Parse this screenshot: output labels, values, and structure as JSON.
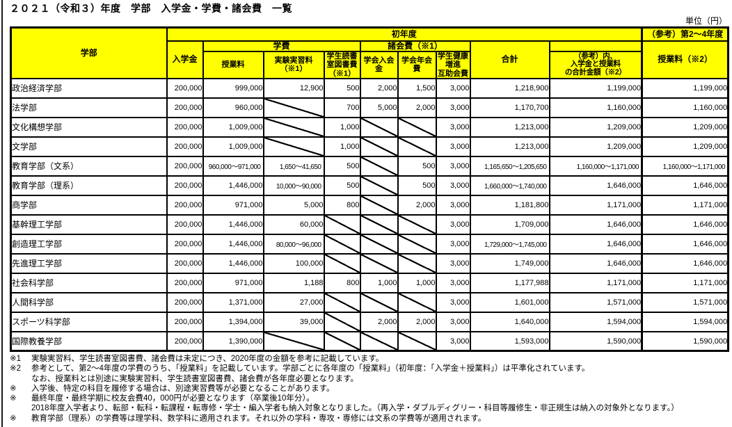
{
  "page": {
    "title": "２０２１（令和３）年度　学部　入学金・学費・諸会費　一覧",
    "unit_label": "単位（円）"
  },
  "table": {
    "group_headers": {
      "faculty": "学部",
      "first_year": "初年度",
      "ref_years": "（参考）第2～4年度",
      "admission": "入学金",
      "gakuhi": "学費",
      "shokaihi": "諸会費（※1）",
      "total": "合計",
      "ref_total": "（参考）内、入学金と授業料\nの合計金額（※2）",
      "tuition2_4": "授業料（※2）"
    },
    "sub_headers": {
      "tuition": "授業料",
      "lab": "実験実習料\n（※1）",
      "library": "学生読書\n室図書費\n（※1）",
      "society_entry": "学会入会\n金",
      "society_annual": "学会年会\n費",
      "health": "学生健康\n増進\n互助会費"
    },
    "rows": [
      {
        "faculty": "政治経済学部",
        "values": [
          "200,000",
          "999,000",
          "12,900",
          "500",
          "2,000",
          "1,500",
          "3,000",
          "1,218,900",
          "1,199,000",
          "1,199,000"
        ]
      },
      {
        "faculty": "法学部",
        "values": [
          "200,000",
          "960,000",
          null,
          "700",
          "5,000",
          "2,000",
          "3,000",
          "1,170,700",
          "1,160,000",
          "1,160,000"
        ]
      },
      {
        "faculty": "文化構想学部",
        "values": [
          "200,000",
          "1,009,000",
          null,
          "1,000",
          null,
          null,
          "3,000",
          "1,213,000",
          "1,209,000",
          "1,209,000"
        ]
      },
      {
        "faculty": "文学部",
        "values": [
          "200,000",
          "1,009,000",
          null,
          "1,000",
          null,
          null,
          "3,000",
          "1,213,000",
          "1,209,000",
          "1,209,000"
        ]
      },
      {
        "faculty": "教育学部（文系）",
        "values": [
          "200,000",
          "960,000～971,000",
          "1,650～41,650",
          "500",
          null,
          "500",
          "3,000",
          "1,165,650～1,205,650",
          "1,160,000～1,171,000",
          "1,160,000～1,171,000"
        ]
      },
      {
        "faculty": "教育学部（理系）",
        "values": [
          "200,000",
          "1,446,000",
          "10,000～90,000",
          "500",
          null,
          "500",
          "3,000",
          "1,660,000～1,740,000",
          "1,646,000",
          "1,646,000"
        ]
      },
      {
        "faculty": "商学部",
        "values": [
          "200,000",
          "971,000",
          "5,000",
          "800",
          null,
          "2,000",
          "3,000",
          "1,181,800",
          "1,171,000",
          "1,171,000"
        ]
      },
      {
        "faculty": "基幹理工学部",
        "values": [
          "200,000",
          "1,446,000",
          "60,000",
          null,
          null,
          null,
          "3,000",
          "1,709,000",
          "1,646,000",
          "1,646,000"
        ]
      },
      {
        "faculty": "創造理工学部",
        "values": [
          "200,000",
          "1,446,000",
          "80,000～96,000",
          null,
          null,
          null,
          "3,000",
          "1,729,000～1,745,000",
          "1,646,000",
          "1,646,000"
        ]
      },
      {
        "faculty": "先進理工学部",
        "values": [
          "200,000",
          "1,446,000",
          "100,000",
          null,
          null,
          null,
          "3,000",
          "1,749,000",
          "1,646,000",
          "1,646,000"
        ]
      },
      {
        "faculty": "社会科学部",
        "values": [
          "200,000",
          "971,000",
          "1,188",
          "800",
          "1,000",
          "1,000",
          "3,000",
          "1,177,988",
          "1,171,000",
          "1,171,000"
        ]
      },
      {
        "faculty": "人間科学部",
        "values": [
          "200,000",
          "1,371,000",
          "27,000",
          null,
          null,
          null,
          "3,000",
          "1,601,000",
          "1,571,000",
          "1,571,000"
        ]
      },
      {
        "faculty": "スポーツ科学部",
        "values": [
          "200,000",
          "1,394,000",
          "39,000",
          null,
          "2,000",
          "2,000",
          "3,000",
          "1,640,000",
          "1,594,000",
          "1,594,000"
        ]
      },
      {
        "faculty": "国際教養学部",
        "values": [
          "200,000",
          "1,390,000",
          null,
          null,
          null,
          null,
          "3,000",
          "1,593,000",
          "1,590,000",
          "1,590,000"
        ]
      }
    ]
  },
  "footnotes": [
    {
      "marker": "※1",
      "text": "実験実習料、学生読書室図書費、諸会費は未定につき、2020年度の金額を参考に記載しています。"
    },
    {
      "marker": "※2",
      "text": "参考として、第2～4年度の学費のうち、「授業料」を記載しています。学部ごとに各年度の「授業料」（初年度：「入学金＋授業料」）は平準化されています。"
    },
    {
      "marker": "",
      "text": "なお、授業料とは別途に実験実習料、学生読書室図書費、諸会費が各年度必要となります。"
    },
    {
      "marker": "※",
      "text": "入学後、特定の科目を履修する場合は、別途実習費等が必要となることがあります。"
    },
    {
      "marker": "※",
      "text": "最終年度・最終学期に校友会費40，000円が必要となります（卒業後10年分）。"
    },
    {
      "marker": "",
      "text": "2018年度入学者より、転部・転科・転課程・転専修・学士・編入学者も納入対象となりました。（再入学・ダブルディグリー・科目等履修生・非正規生は納入の対象外となります。）"
    },
    {
      "marker": "※",
      "text": "教育学部（理系）の学費等は理学科、数学科に適用されます。それ以外の学科・専攻・専修には文系の学費等が適用されます。"
    }
  ]
}
